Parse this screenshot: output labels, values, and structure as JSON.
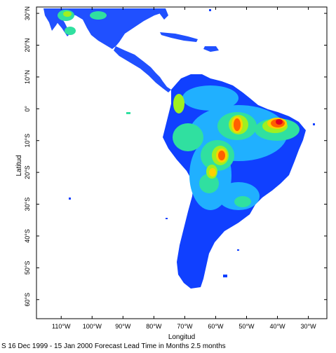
{
  "map": {
    "x_axis_title": "Longitud",
    "y_axis_title": "Latitud",
    "x_ticks": [
      {
        "lon": -110,
        "label": "110°W"
      },
      {
        "lon": -100,
        "label": "100°W"
      },
      {
        "lon": -90,
        "label": "90°W"
      },
      {
        "lon": -80,
        "label": "80°W"
      },
      {
        "lon": -70,
        "label": "70°W"
      },
      {
        "lon": -60,
        "label": "60°W"
      },
      {
        "lon": -50,
        "label": "50°W"
      },
      {
        "lon": -40,
        "label": "40°W"
      },
      {
        "lon": -30,
        "label": "30°W"
      }
    ],
    "y_ticks": [
      {
        "lat": 30,
        "label": "30°N"
      },
      {
        "lat": 20,
        "label": "20°N"
      },
      {
        "lat": 10,
        "label": "10°N"
      },
      {
        "lat": 0,
        "label": "0°"
      },
      {
        "lat": -10,
        "label": "10°S"
      },
      {
        "lat": -20,
        "label": "20°S"
      },
      {
        "lat": -30,
        "label": "30°S"
      },
      {
        "lat": -40,
        "label": "40°S"
      },
      {
        "lat": -50,
        "label": "50°S"
      },
      {
        "lat": -60,
        "label": "60°S"
      }
    ],
    "lon_range": [
      -118,
      -24
    ],
    "lat_range": [
      -66,
      32
    ],
    "colors": {
      "low": "#1040ff",
      "mid_low": "#20b0ff",
      "mid": "#30e0a0",
      "mid_high": "#a0f020",
      "high": "#ffd000",
      "very_high": "#ff6000",
      "extreme": "#e00020"
    },
    "caption": "S 16 Dec 1999 - 15 Jan 2000 Forecast Lead Time in Months 2.5 months"
  }
}
